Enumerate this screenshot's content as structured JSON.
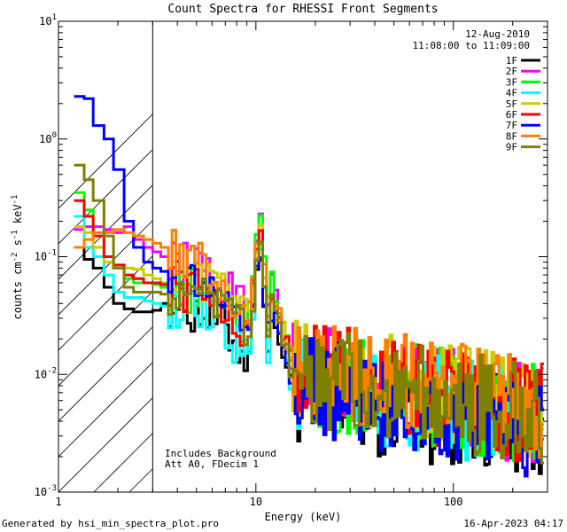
{
  "chart_data": {
    "type": "line",
    "title": "Count Spectra for RHESSI Front Segments",
    "xlabel": "Energy (keV)",
    "ylabel": "counts cm-2 s-1 keV-1",
    "xscale": "log",
    "yscale": "log",
    "xlim": [
      1,
      300
    ],
    "ylim": [
      0.001,
      10
    ],
    "x_ticks": [
      {
        "value": 1,
        "label": "1"
      },
      {
        "value": 10,
        "label": "10"
      },
      {
        "value": 100,
        "label": "100"
      }
    ],
    "y_ticks": [
      {
        "value": 0.001,
        "base": "10",
        "exp": "-3"
      },
      {
        "value": 0.01,
        "base": "10",
        "exp": "-2"
      },
      {
        "value": 0.1,
        "base": "10",
        "exp": "-1"
      },
      {
        "value": 1,
        "base": "10",
        "exp": "0"
      },
      {
        "value": 10,
        "base": "10",
        "exp": "1"
      }
    ],
    "date": "12-Aug-2010",
    "time_range": "11:08:00 to 11:09:00",
    "annotation_lines": [
      "Includes Background",
      "Att A0, FDecim 1"
    ],
    "attenuator_region_max_kev": 3,
    "footer_left": "Generated by hsi_min_spectra_plot.pro",
    "footer_right": "16-Apr-2023 04:17",
    "series": [
      {
        "name": "1F",
        "color": "#000000",
        "low": [
          0.12,
          0.095,
          0.08,
          0.055,
          0.04,
          0.036,
          0.034,
          0.034,
          0.035,
          0.04
        ],
        "mid": 0.03,
        "dip": 0.014,
        "peak": 0.12,
        "tail": 0.007,
        "highend": 0.0035
      },
      {
        "name": "2F",
        "color": "#ff00ff",
        "low": [
          0.17,
          0.18,
          0.18,
          0.17,
          0.16,
          0.18,
          0.14,
          0.12,
          0.11,
          0.1
        ],
        "mid": 0.06,
        "dip": 0.04,
        "peak": 0.2,
        "tail": 0.011,
        "highend": 0.0045
      },
      {
        "name": "3F",
        "color": "#00ff00",
        "low": [
          0.35,
          0.25,
          0.15,
          0.1,
          0.08,
          0.065,
          0.06,
          0.06,
          0.058,
          0.055
        ],
        "mid": 0.045,
        "dip": 0.025,
        "peak": 0.23,
        "tail": 0.01,
        "highend": 0.0045
      },
      {
        "name": "4F",
        "color": "#00ffff",
        "low": [
          0.22,
          0.12,
          0.1,
          0.07,
          0.05,
          0.045,
          0.045,
          0.042,
          0.04,
          0.038
        ],
        "mid": 0.028,
        "dip": 0.014,
        "peak": 0.14,
        "tail": 0.008,
        "highend": 0.004
      },
      {
        "name": "5F",
        "color": "#cccc00",
        "low": [
          0.18,
          0.16,
          0.12,
          0.09,
          0.08,
          0.08,
          0.078,
          0.07,
          0.065,
          0.06
        ],
        "mid": 0.055,
        "dip": 0.035,
        "peak": 0.15,
        "tail": 0.012,
        "highend": 0.005
      },
      {
        "name": "6F",
        "color": "#ff0000",
        "low": [
          0.3,
          0.22,
          0.15,
          0.1,
          0.085,
          0.07,
          0.065,
          0.06,
          0.06,
          0.058
        ],
        "mid": 0.045,
        "dip": 0.025,
        "peak": 0.16,
        "tail": 0.011,
        "highend": 0.0045
      },
      {
        "name": "7F",
        "color": "#0000ff",
        "low": [
          2.3,
          2.2,
          1.3,
          1.0,
          0.55,
          0.2,
          0.12,
          0.09,
          0.08,
          0.075
        ],
        "mid": 0.05,
        "dip": 0.025,
        "peak": 0.11,
        "tail": 0.008,
        "highend": 0.0035
      },
      {
        "name": "8F",
        "color": "#ff8000",
        "low": [
          0.12,
          0.14,
          0.16,
          0.16,
          0.17,
          0.16,
          0.15,
          0.14,
          0.13,
          0.12
        ],
        "mid": 0.07,
        "dip": 0.03,
        "peak": 0.17,
        "tail": 0.013,
        "highend": 0.005
      },
      {
        "name": "9F",
        "color": "#808000",
        "low": [
          0.6,
          0.45,
          0.3,
          0.15,
          0.08,
          0.055,
          0.05,
          0.05,
          0.05,
          0.048
        ],
        "mid": 0.04,
        "dip": 0.022,
        "peak": 0.12,
        "tail": 0.01,
        "highend": 0.0045
      }
    ]
  }
}
